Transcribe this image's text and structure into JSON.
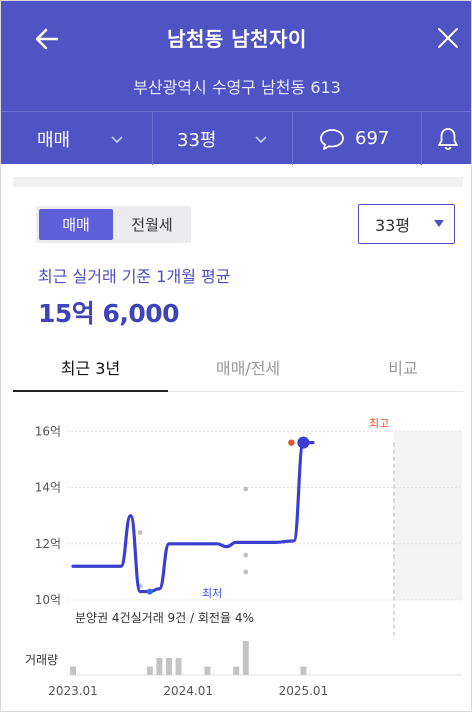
{
  "header": {
    "title": "남천동 남천자이",
    "address": "부산광역시 수영구 남천동 613",
    "deal_type": "매매",
    "size": "33평",
    "comment_count": "697"
  },
  "toggle": {
    "active": "매매",
    "inactive": "전월세"
  },
  "size_select": {
    "value": "33평"
  },
  "summary": {
    "caption": "최근 실거래 기준 1개월 평균",
    "price": "15억 6,000"
  },
  "tabs": [
    {
      "label": "최근 3년"
    },
    {
      "label": "매매/전세"
    },
    {
      "label": "비교"
    }
  ],
  "chart_data": {
    "type": "line",
    "y_ticks": [
      "16억",
      "14억",
      "12억",
      "10억"
    ],
    "x_ticks": [
      "2023.01",
      "2024.01",
      "2025.01"
    ],
    "y_unit": "억",
    "ylim": [
      10,
      16
    ],
    "xlim": [
      "2023.01",
      "2025.04"
    ],
    "series": [
      {
        "x": [
          "2023.01",
          "2023.03",
          "2023.06",
          "2023.07",
          "2023.08",
          "2023.09",
          "2023.10",
          "2023.11",
          "2024.01",
          "2024.04",
          "2024.05",
          "2024.06",
          "2024.07",
          "2024.10",
          "2024.12",
          "2025.01",
          "2025.02"
        ],
        "y": [
          11.2,
          11.2,
          11.2,
          13.0,
          10.3,
          10.3,
          10.4,
          12.0,
          12.0,
          12.0,
          11.9,
          12.05,
          12.05,
          12.05,
          12.1,
          15.6,
          15.6
        ]
      }
    ],
    "scatter": [
      {
        "x": "2023.08",
        "y": 12.4
      },
      {
        "x": "2023.08",
        "y": 10.5
      },
      {
        "x": "2024.07",
        "y": 13.95
      },
      {
        "x": "2024.07",
        "y": 11.6
      },
      {
        "x": "2024.07",
        "y": 11.0
      }
    ],
    "low_point": {
      "label": "최저",
      "x": "2023.09",
      "y": 10.3
    },
    "high_point": {
      "label": "최고",
      "x": "2025.01",
      "y": 15.6
    },
    "volume_label": "거래량",
    "volume": [
      {
        "x": "2023.01",
        "count": 1
      },
      {
        "x": "2023.09",
        "count": 1
      },
      {
        "x": "2023.10",
        "count": 2
      },
      {
        "x": "2023.11",
        "count": 2
      },
      {
        "x": "2023.12",
        "count": 2
      },
      {
        "x": "2024.03",
        "count": 1
      },
      {
        "x": "2024.06",
        "count": 1
      },
      {
        "x": "2024.07",
        "count": 4
      },
      {
        "x": "2025.01",
        "count": 1
      }
    ],
    "note": "분양권 4건실거래 9건 / 회전율 4%"
  },
  "colors": {
    "brand": "#4f53c4",
    "line": "#3b3fcf",
    "low": "#2f6fe6",
    "high": "#e2542b"
  }
}
